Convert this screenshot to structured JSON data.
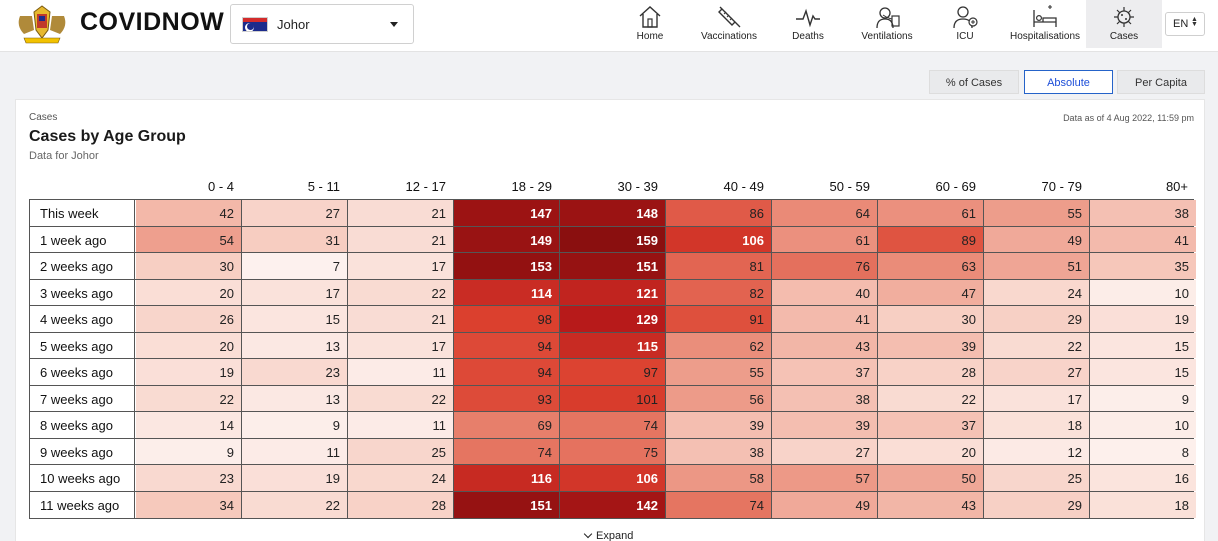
{
  "header": {
    "brand": "COVIDNOW",
    "state": "Johor",
    "lang": "EN",
    "nav": [
      {
        "label": "Home",
        "icon": "home-icon"
      },
      {
        "label": "Vaccinations",
        "icon": "syringe-icon"
      },
      {
        "label": "Deaths",
        "icon": "pulse-icon"
      },
      {
        "label": "Ventilations",
        "icon": "ventilator-icon"
      },
      {
        "label": "ICU",
        "icon": "icu-icon"
      },
      {
        "label": "Hospitalisations",
        "icon": "hospital-bed-icon"
      },
      {
        "label": "Cases",
        "icon": "virus-icon",
        "active": true
      }
    ]
  },
  "toggles": [
    {
      "label": "% of Cases",
      "active": false
    },
    {
      "label": "Absolute",
      "active": true
    },
    {
      "label": "Per Capita",
      "active": false
    }
  ],
  "card": {
    "kicker": "Cases",
    "title": "Cases by Age Group",
    "subtitle": "Data for Johor",
    "as_of": "Data as of 4 Aug 2022, 11:59 pm",
    "expand_label": "Expand"
  },
  "colors": {
    "heat_low": "#fbe9e5",
    "heat_high": "#8a0f0f",
    "accent": "#2563c9"
  },
  "chart_data": {
    "type": "heatmap",
    "columns": [
      "0 - 4",
      "5 - 11",
      "12 - 17",
      "18 - 29",
      "30 - 39",
      "40 - 49",
      "50 - 59",
      "60 - 69",
      "70 - 79",
      "80+"
    ],
    "rows": [
      "This week",
      "1 week ago",
      "2 weeks ago",
      "3 weeks ago",
      "4 weeks ago",
      "5 weeks ago",
      "6 weeks ago",
      "7 weeks ago",
      "8 weeks ago",
      "9 weeks ago",
      "10 weeks ago",
      "11 weeks ago"
    ],
    "values": [
      [
        42,
        27,
        21,
        147,
        148,
        86,
        64,
        61,
        55,
        38
      ],
      [
        54,
        31,
        21,
        149,
        159,
        106,
        61,
        89,
        49,
        41
      ],
      [
        30,
        7,
        17,
        153,
        151,
        81,
        76,
        63,
        51,
        35
      ],
      [
        20,
        17,
        22,
        114,
        121,
        82,
        40,
        47,
        24,
        10
      ],
      [
        26,
        15,
        21,
        98,
        129,
        91,
        41,
        30,
        29,
        19
      ],
      [
        20,
        13,
        17,
        94,
        115,
        62,
        43,
        39,
        22,
        15
      ],
      [
        19,
        23,
        11,
        94,
        97,
        55,
        37,
        28,
        27,
        15
      ],
      [
        22,
        13,
        22,
        93,
        101,
        56,
        38,
        22,
        17,
        9
      ],
      [
        14,
        9,
        11,
        69,
        74,
        39,
        39,
        37,
        18,
        10
      ],
      [
        9,
        11,
        25,
        74,
        75,
        38,
        27,
        20,
        12,
        8
      ],
      [
        23,
        19,
        24,
        116,
        106,
        58,
        57,
        50,
        25,
        16
      ],
      [
        34,
        22,
        28,
        151,
        142,
        74,
        49,
        43,
        29,
        18
      ]
    ]
  }
}
